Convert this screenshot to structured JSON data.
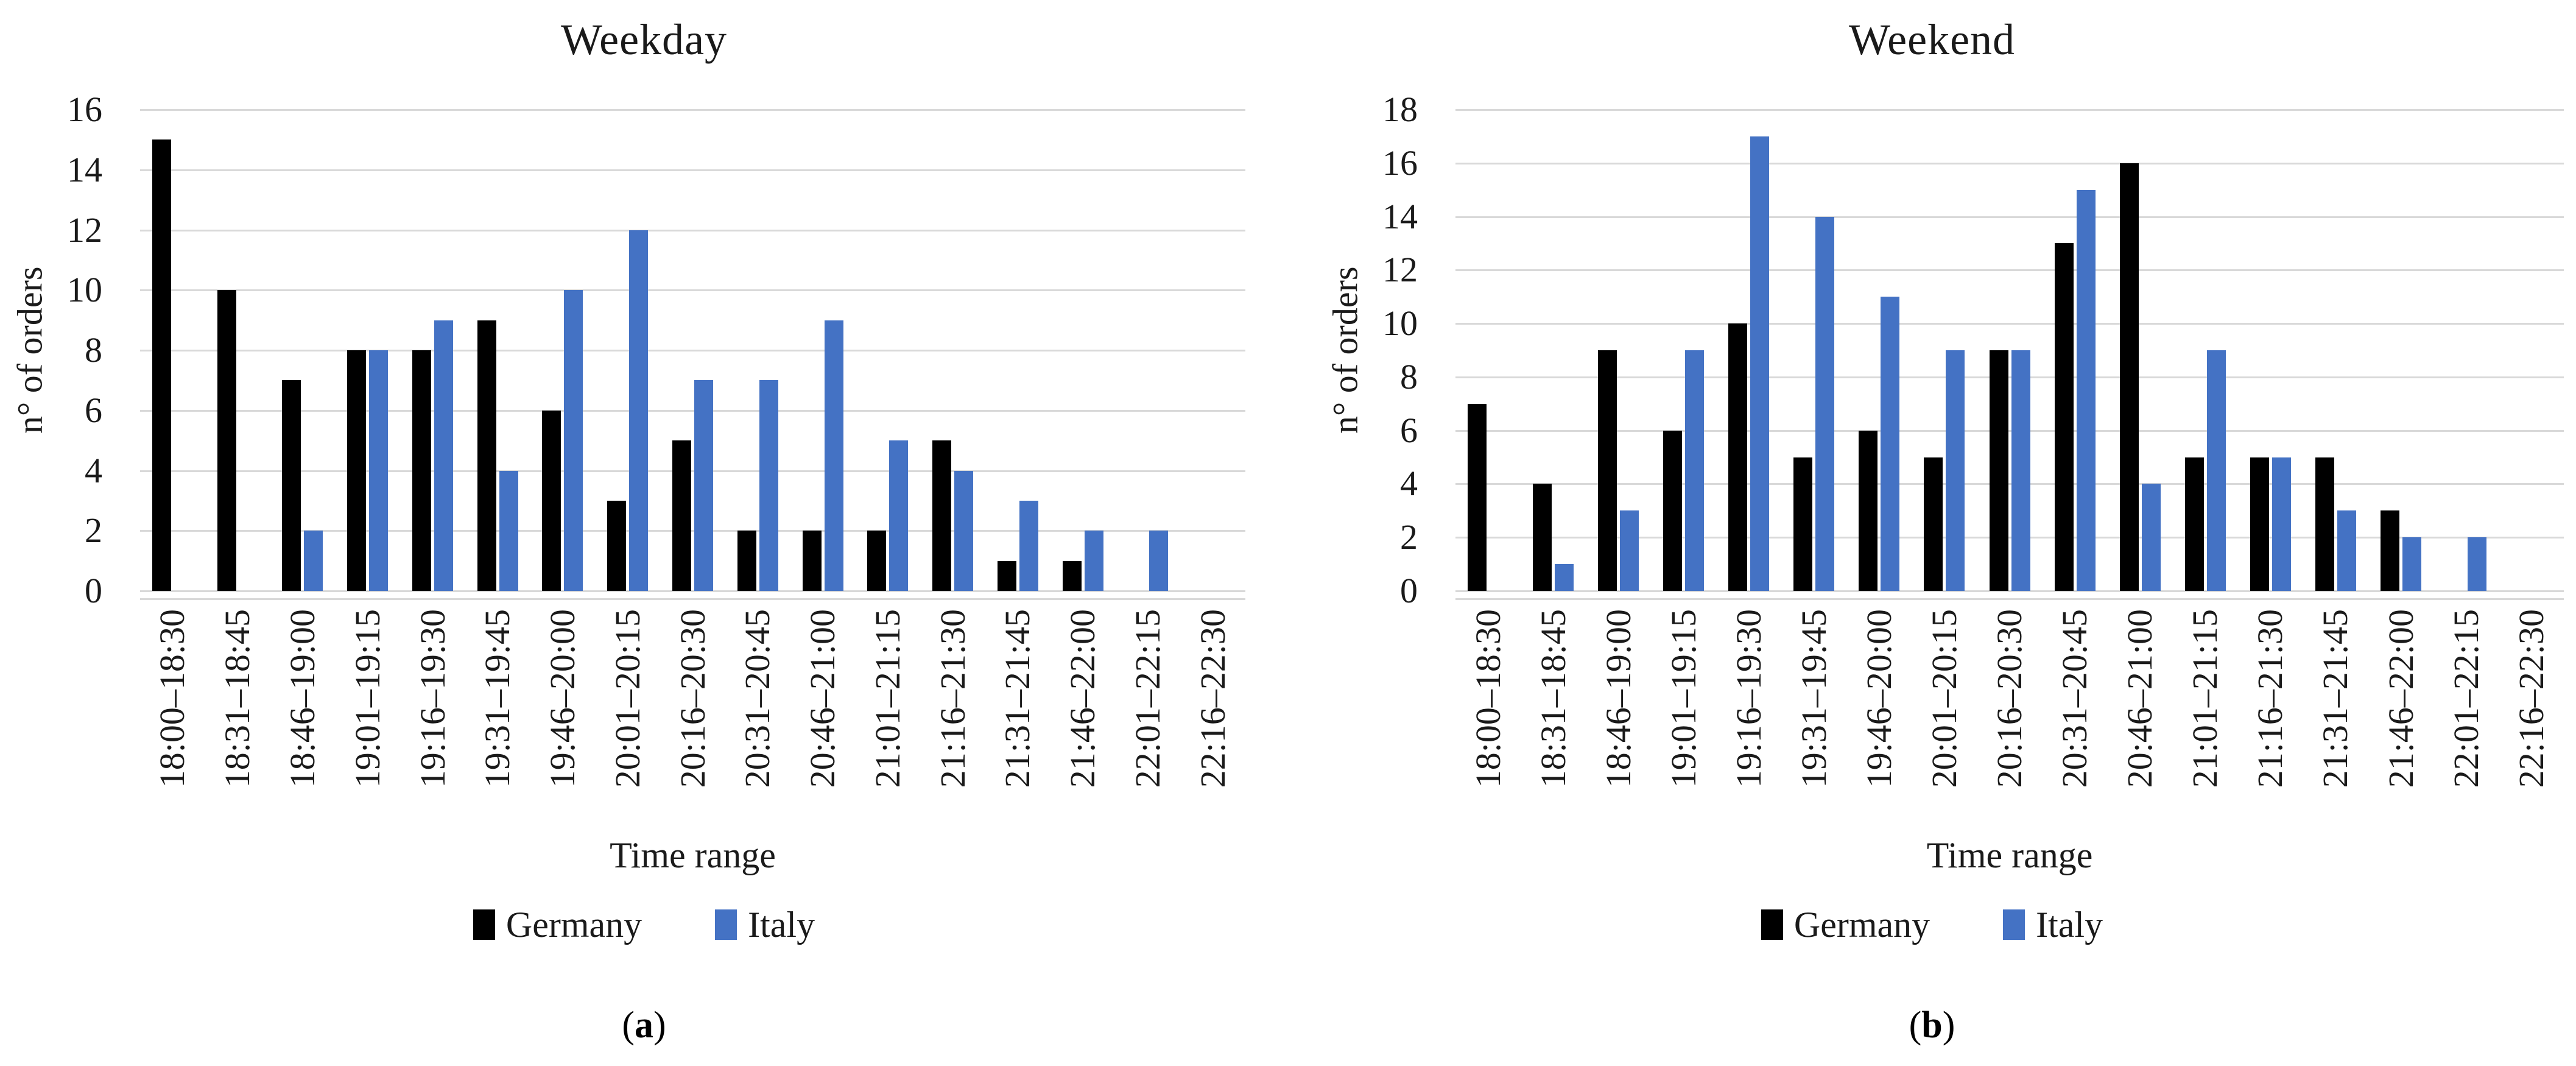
{
  "colors": {
    "germany": "#000000",
    "italy": "#4472C4",
    "gridline": "#D9D9D9",
    "text": "#1A1A1A"
  },
  "chart_data": [
    {
      "type": "bar",
      "title": "Weekday",
      "xlabel": "Time range",
      "ylabel": "n° of orders",
      "ylim": [
        0,
        16
      ],
      "ytick_step": 2,
      "grid": true,
      "legend_position": "bottom",
      "caption": {
        "open": "(",
        "letter": "a",
        "close": ")"
      },
      "categories": [
        "18:00–18:30",
        "18:31–18:45",
        "18:46–19:00",
        "19:01–19:15",
        "19:16–19:30",
        "19:31–19:45",
        "19:46–20:00",
        "20:01–20:15",
        "20:16–20:30",
        "20:31–20:45",
        "20:46–21:00",
        "21:01–21:15",
        "21:16–21:30",
        "21:31–21:45",
        "21:46–22:00",
        "22:01–22:15",
        "22:16–22:30"
      ],
      "series": [
        {
          "name": "Germany",
          "color": "#000000",
          "values": [
            15,
            10,
            7,
            8,
            8,
            9,
            6,
            3,
            5,
            2,
            2,
            2,
            5,
            1,
            1,
            0,
            0
          ]
        },
        {
          "name": "Italy",
          "color": "#4472C4",
          "values": [
            0,
            0,
            2,
            8,
            9,
            4,
            10,
            12,
            7,
            7,
            9,
            5,
            4,
            3,
            2,
            2,
            0
          ]
        }
      ]
    },
    {
      "type": "bar",
      "title": "Weekend",
      "xlabel": "Time range",
      "ylabel": "n° of orders",
      "ylim": [
        0,
        18
      ],
      "ytick_step": 2,
      "grid": true,
      "legend_position": "bottom",
      "caption": {
        "open": "(",
        "letter": "b",
        "close": ")"
      },
      "categories": [
        "18:00–18:30",
        "18:31–18:45",
        "18:46–19:00",
        "19:01–19:15",
        "19:16–19:30",
        "19:31–19:45",
        "19:46–20:00",
        "20:01–20:15",
        "20:16–20:30",
        "20:31–20:45",
        "20:46–21:00",
        "21:01–21:15",
        "21:16–21:30",
        "21:31–21:45",
        "21:46–22:00",
        "22:01–22:15",
        "22:16–22:30"
      ],
      "series": [
        {
          "name": "Germany",
          "color": "#000000",
          "values": [
            7,
            4,
            9,
            6,
            10,
            5,
            6,
            5,
            9,
            13,
            16,
            5,
            5,
            5,
            3,
            0,
            0
          ]
        },
        {
          "name": "Italy",
          "color": "#4472C4",
          "values": [
            0,
            1,
            3,
            9,
            17,
            14,
            11,
            9,
            9,
            15,
            4,
            9,
            5,
            3,
            2,
            2,
            0
          ]
        }
      ]
    }
  ]
}
